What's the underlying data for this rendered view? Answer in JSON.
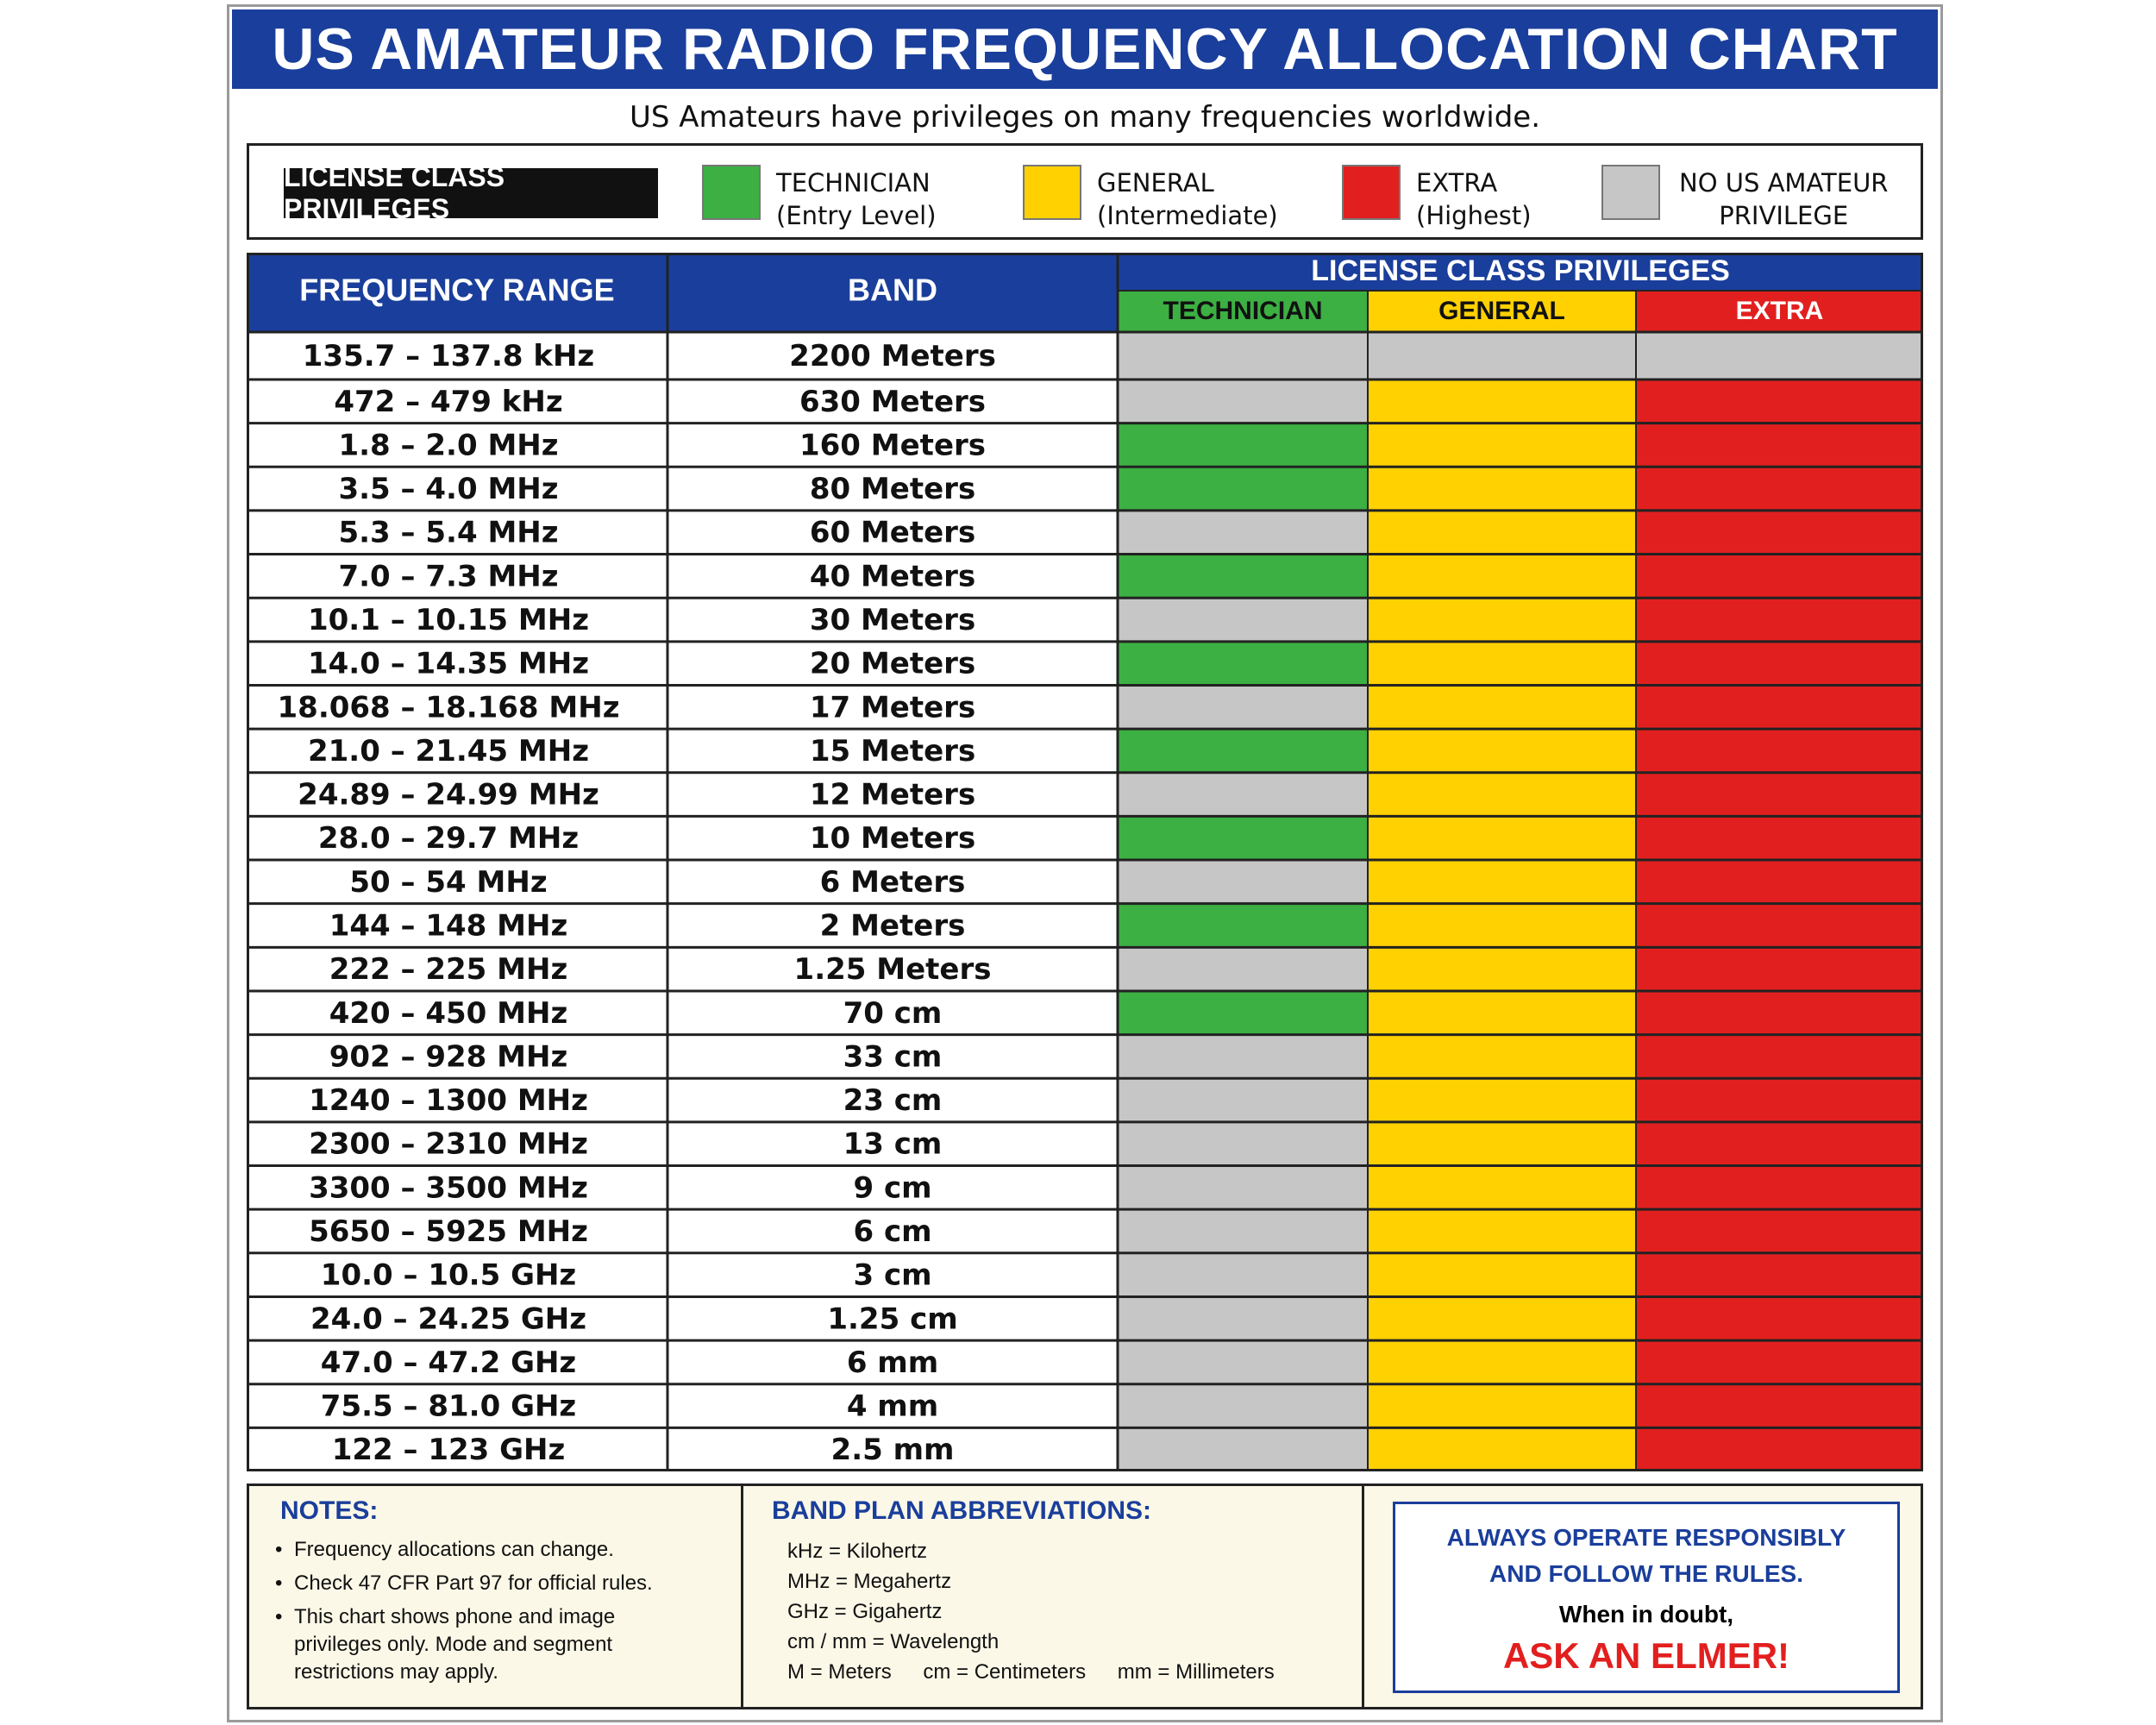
{
  "title": "US AMATEUR RADIO FREQUENCY ALLOCATION CHART",
  "subtitle": "US Amateurs have privileges on many frequencies worldwide.",
  "colors": {
    "blue": "#1a3e9b",
    "technician": "#3cb043",
    "general": "#ffd100",
    "extra": "#e21f1f",
    "none": "#c6c6c6"
  },
  "legend": {
    "badge": "LICENSE CLASS PRIVILEGES",
    "items": [
      {
        "key": "technician",
        "line1": "TECHNICIAN",
        "line2": "(Entry Level)"
      },
      {
        "key": "general",
        "line1": "GENERAL",
        "line2": "(Intermediate)"
      },
      {
        "key": "extra",
        "line1": "EXTRA",
        "line2": "(Highest)"
      },
      {
        "key": "none",
        "line1": "NO US AMATEUR",
        "line2": "PRIVILEGE"
      }
    ]
  },
  "chart_data": {
    "type": "table",
    "columns": {
      "frequency": "FREQUENCY RANGE",
      "band": "BAND",
      "privileges_group": "LICENSE CLASS PRIVILEGES",
      "classes": [
        "TECHNICIAN",
        "GENERAL",
        "EXTRA"
      ]
    },
    "privilege_key": "T = technician, G = general, E = extra privilege present; N = no US amateur privilege",
    "rows": [
      {
        "frequency": "135.7 – 137.8 kHz",
        "band": "2200 Meters",
        "privileges": [
          "N",
          "N",
          "N"
        ]
      },
      {
        "frequency": "472 – 479 kHz",
        "band": "630 Meters",
        "privileges": [
          "N",
          "G",
          "E"
        ]
      },
      {
        "frequency": "1.8 – 2.0 MHz",
        "band": "160 Meters",
        "privileges": [
          "T",
          "G",
          "E"
        ]
      },
      {
        "frequency": "3.5 – 4.0 MHz",
        "band": "80 Meters",
        "privileges": [
          "T",
          "G",
          "E"
        ]
      },
      {
        "frequency": "5.3 – 5.4 MHz",
        "band": "60 Meters",
        "privileges": [
          "N",
          "G",
          "E"
        ]
      },
      {
        "frequency": "7.0 – 7.3 MHz",
        "band": "40 Meters",
        "privileges": [
          "T",
          "G",
          "E"
        ]
      },
      {
        "frequency": "10.1 – 10.15 MHz",
        "band": "30 Meters",
        "privileges": [
          "N",
          "G",
          "E"
        ]
      },
      {
        "frequency": "14.0 – 14.35 MHz",
        "band": "20 Meters",
        "privileges": [
          "T",
          "G",
          "E"
        ]
      },
      {
        "frequency": "18.068 – 18.168 MHz",
        "band": "17 Meters",
        "privileges": [
          "N",
          "G",
          "E"
        ]
      },
      {
        "frequency": "21.0 – 21.45 MHz",
        "band": "15 Meters",
        "privileges": [
          "T",
          "G",
          "E"
        ]
      },
      {
        "frequency": "24.89 – 24.99 MHz",
        "band": "12 Meters",
        "privileges": [
          "N",
          "G",
          "E"
        ]
      },
      {
        "frequency": "28.0 – 29.7 MHz",
        "band": "10 Meters",
        "privileges": [
          "T",
          "G",
          "E"
        ]
      },
      {
        "frequency": "50 – 54 MHz",
        "band": "6 Meters",
        "privileges": [
          "N",
          "G",
          "E"
        ]
      },
      {
        "frequency": "144 – 148 MHz",
        "band": "2 Meters",
        "privileges": [
          "T",
          "G",
          "E"
        ]
      },
      {
        "frequency": "222 – 225 MHz",
        "band": "1.25 Meters",
        "privileges": [
          "N",
          "G",
          "E"
        ]
      },
      {
        "frequency": "420 – 450 MHz",
        "band": "70 cm",
        "privileges": [
          "T",
          "G",
          "E"
        ]
      },
      {
        "frequency": "902 – 928 MHz",
        "band": "33 cm",
        "privileges": [
          "N",
          "G",
          "E"
        ]
      },
      {
        "frequency": "1240 – 1300 MHz",
        "band": "23 cm",
        "privileges": [
          "N",
          "G",
          "E"
        ]
      },
      {
        "frequency": "2300 – 2310 MHz",
        "band": "13 cm",
        "privileges": [
          "N",
          "G",
          "E"
        ]
      },
      {
        "frequency": "3300 – 3500 MHz",
        "band": "9 cm",
        "privileges": [
          "N",
          "G",
          "E"
        ]
      },
      {
        "frequency": "5650 – 5925 MHz",
        "band": "6 cm",
        "privileges": [
          "N",
          "G",
          "E"
        ]
      },
      {
        "frequency": "10.0 – 10.5 GHz",
        "band": "3 cm",
        "privileges": [
          "N",
          "G",
          "E"
        ]
      },
      {
        "frequency": "24.0 – 24.25 GHz",
        "band": "1.25 cm",
        "privileges": [
          "N",
          "G",
          "E"
        ]
      },
      {
        "frequency": "47.0 – 47.2 GHz",
        "band": "6 mm",
        "privileges": [
          "N",
          "G",
          "E"
        ]
      },
      {
        "frequency": "75.5 – 81.0 GHz",
        "band": "4 mm",
        "privileges": [
          "N",
          "G",
          "E"
        ]
      },
      {
        "frequency": "122 – 123 GHz",
        "band": "2.5 mm",
        "privileges": [
          "N",
          "G",
          "E"
        ]
      }
    ]
  },
  "notes": {
    "heading": "NOTES:",
    "items": [
      "Frequency allocations can change.",
      "Check 47 CFR Part 97 for official rules.",
      "This chart shows phone and image privileges only. Mode and segment restrictions may apply."
    ]
  },
  "abbreviations": {
    "heading": "BAND PLAN ABBREVIATIONS:",
    "lines": [
      "kHz = Kilohertz",
      "MHz = Megahertz",
      "GHz = Gigahertz",
      "cm / mm = Wavelength"
    ],
    "last_line": [
      "M = Meters",
      "cm = Centimeters",
      "mm = Millimeters"
    ]
  },
  "motto": {
    "line1": "ALWAYS OPERATE RESPONSIBLY",
    "line2": "AND FOLLOW THE RULES.",
    "line3": "When in doubt,",
    "line4": "ASK AN ELMER!"
  }
}
